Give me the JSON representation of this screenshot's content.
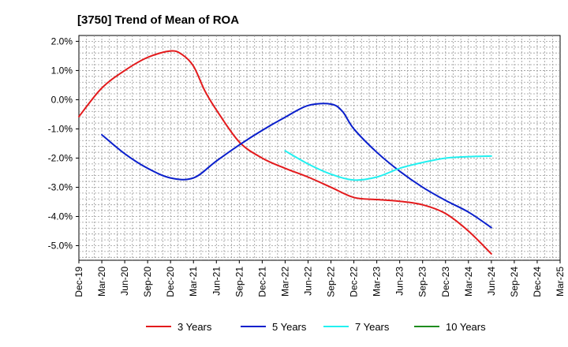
{
  "chart_data": {
    "type": "line",
    "title": "[3750]  Trend of Mean of ROA",
    "xlabel": "",
    "ylabel": "",
    "x_categories": [
      "Dec-19",
      "Mar-20",
      "Jun-20",
      "Sep-20",
      "Dec-20",
      "Mar-21",
      "Jun-21",
      "Sep-21",
      "Dec-21",
      "Mar-22",
      "Jun-22",
      "Sep-22",
      "Dec-22",
      "Mar-23",
      "Jun-23",
      "Sep-23",
      "Dec-23",
      "Mar-24",
      "Jun-24",
      "Sep-24",
      "Dec-24",
      "Mar-25"
    ],
    "y_ticks": [
      2.0,
      1.0,
      0.0,
      -1.0,
      -2.0,
      -3.0,
      -4.0,
      -5.0
    ],
    "y_tick_labels": [
      "2.0%",
      "1.0%",
      "0.0%",
      "-1.0%",
      "-2.0%",
      "-3.0%",
      "-4.0%",
      "-5.0%"
    ],
    "ylim": [
      -5.5,
      2.2
    ],
    "grid": true,
    "legend_position": "bottom",
    "series": [
      {
        "name": "3 Years",
        "color": "#e31a1c",
        "points": [
          [
            0,
            -0.58
          ],
          [
            1,
            0.4
          ],
          [
            2,
            1.0
          ],
          [
            3,
            1.45
          ],
          [
            4,
            1.67
          ],
          [
            4.5,
            1.55
          ],
          [
            5,
            1.15
          ],
          [
            5.5,
            0.3
          ],
          [
            6,
            -0.35
          ],
          [
            7,
            -1.45
          ],
          [
            8,
            -2.0
          ],
          [
            9,
            -2.35
          ],
          [
            10,
            -2.65
          ],
          [
            11,
            -3.0
          ],
          [
            12,
            -3.35
          ],
          [
            13,
            -3.42
          ],
          [
            14,
            -3.48
          ],
          [
            15,
            -3.6
          ],
          [
            16,
            -3.9
          ],
          [
            17,
            -4.5
          ],
          [
            18,
            -5.28
          ]
        ]
      },
      {
        "name": "5 Years",
        "color": "#0a1fcc",
        "points": [
          [
            1,
            -1.2
          ],
          [
            2,
            -1.85
          ],
          [
            3,
            -2.35
          ],
          [
            4,
            -2.68
          ],
          [
            5,
            -2.68
          ],
          [
            6,
            -2.1
          ],
          [
            7,
            -1.55
          ],
          [
            8,
            -1.05
          ],
          [
            9,
            -0.6
          ],
          [
            10,
            -0.2
          ],
          [
            11,
            -0.15
          ],
          [
            11.5,
            -0.4
          ],
          [
            12,
            -1.0
          ],
          [
            13,
            -1.8
          ],
          [
            14,
            -2.45
          ],
          [
            15,
            -3.0
          ],
          [
            16,
            -3.45
          ],
          [
            17,
            -3.85
          ],
          [
            18,
            -4.38
          ]
        ]
      },
      {
        "name": "7 Years",
        "color": "#22f0f0",
        "points": [
          [
            9,
            -1.75
          ],
          [
            10,
            -2.2
          ],
          [
            11,
            -2.55
          ],
          [
            12,
            -2.75
          ],
          [
            13,
            -2.65
          ],
          [
            14,
            -2.35
          ],
          [
            15,
            -2.15
          ],
          [
            16,
            -2.0
          ],
          [
            17,
            -1.95
          ],
          [
            18,
            -1.93
          ]
        ]
      },
      {
        "name": "10 Years",
        "color": "#1e8c1e",
        "points": []
      }
    ]
  }
}
